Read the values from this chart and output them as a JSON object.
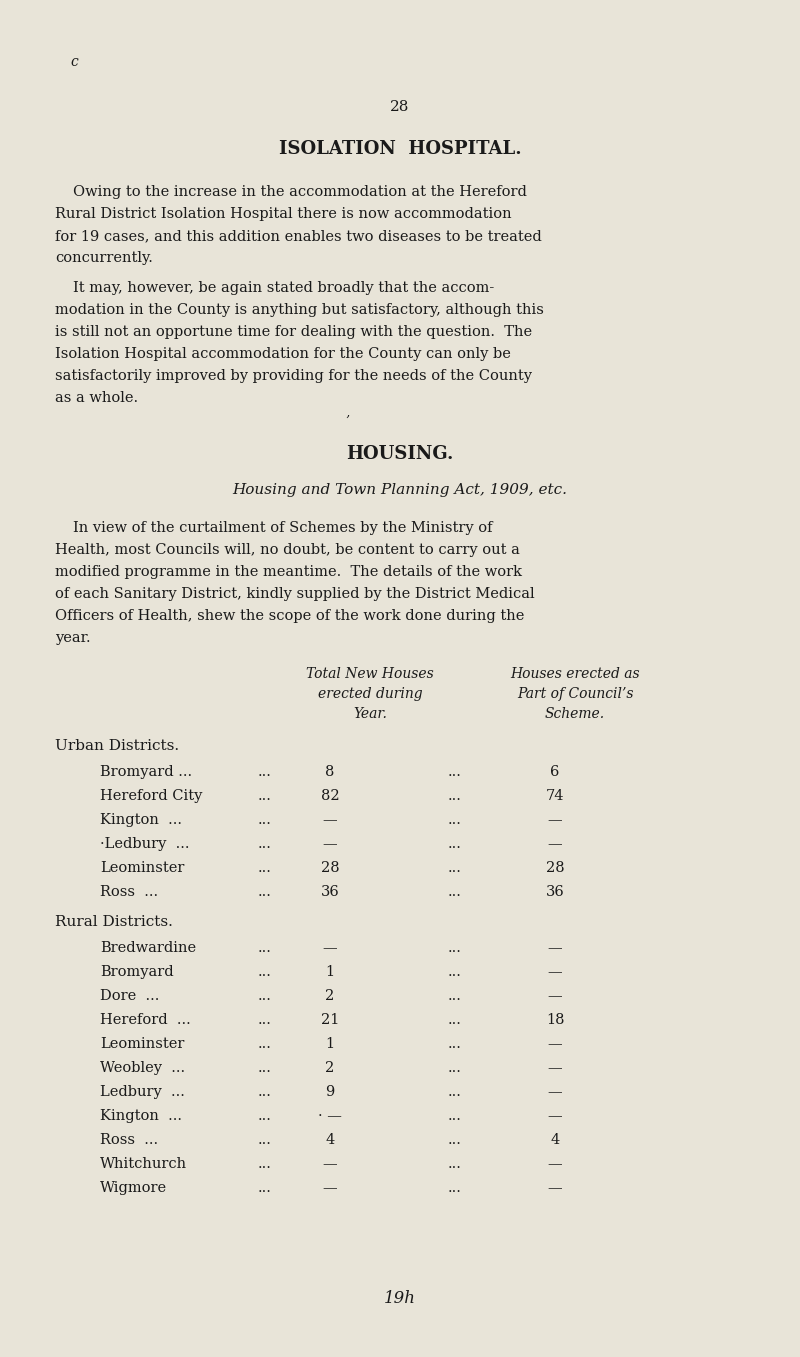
{
  "bg_color": "#e8e4d8",
  "page_number": "28",
  "title1": "ISOLATION  HOSPITAL.",
  "para1_lines": [
    "Owing to the increase in the accommodation at the Hereford",
    "Rural District Isolation Hospital there is now accommodation",
    "for 19 cases, and this addition enables two diseases to be treated",
    "concurrently."
  ],
  "para2_lines": [
    "It may, however, be again stated broadly that the accom-",
    "modation in the County is anything but satisfactory, although this",
    "is still not an opportune time for dealing with the question.  The",
    "Isolation Hospital accommodation for the County can only be",
    "satisfactorily improved by providing for the needs of the County",
    "as a whole."
  ],
  "curly_mark": "’",
  "title2": "HOUSING.",
  "subtitle2": "Housing and Town Planning Act, 1909, etc.",
  "para3_lines": [
    "In view of the curtailment of Schemes by the Ministry of",
    "Health, most Councils will, no doubt, be content to carry out a",
    "modified programme in the meantime.  The details of the work",
    "of each Sanitary District, kindly supplied by the District Medical",
    "Officers of Health, shew the scope of the work done during the",
    "year."
  ],
  "col_header1_lines": [
    "Total New Houses",
    "erected during",
    "Year."
  ],
  "col_header2_lines": [
    "Houses erected as",
    "Part of Council’s",
    "Scheme."
  ],
  "urban_label": "Urban Districts.",
  "urban_rows": [
    [
      "Bromyard ...",
      "...",
      "8",
      "...",
      "6"
    ],
    [
      "Hereford City",
      "...",
      "82",
      "...",
      "74"
    ],
    [
      "Kington  ...",
      "...",
      "—",
      "...",
      "—"
    ],
    [
      "·Ledbury  ...",
      "...",
      "—",
      "...",
      "—"
    ],
    [
      "Leominster",
      "...",
      "28",
      "...",
      "28"
    ],
    [
      "Ross  ...",
      "...",
      "36",
      "...",
      "36"
    ]
  ],
  "rural_label": "Rural Districts.",
  "rural_rows": [
    [
      "Bredwardine",
      "...",
      "—",
      "...",
      "—"
    ],
    [
      "Bromyard",
      "...",
      "1",
      "...",
      "—"
    ],
    [
      "Dore  ...",
      "...",
      "2",
      "...",
      "—"
    ],
    [
      "Hereford  ...",
      "...",
      "21",
      "...",
      "18"
    ],
    [
      "Leominster",
      "...",
      "1",
      "...",
      "—"
    ],
    [
      "Weobley  ...",
      "...",
      "2",
      "...",
      "—"
    ],
    [
      "Ledbury  ...",
      "...",
      "9",
      "...",
      "—"
    ],
    [
      "Kington  ...",
      "...",
      "· —",
      "...",
      "—"
    ],
    [
      "Ross  ...",
      "...",
      "4",
      "...",
      "4"
    ],
    [
      "Whitchurch",
      "...",
      "—",
      "...",
      "—"
    ],
    [
      "Wigmore",
      "...",
      "—",
      "...",
      "—"
    ]
  ],
  "footer_text": "19h",
  "corner_mark": "c",
  "text_color": "#1a1a1a"
}
